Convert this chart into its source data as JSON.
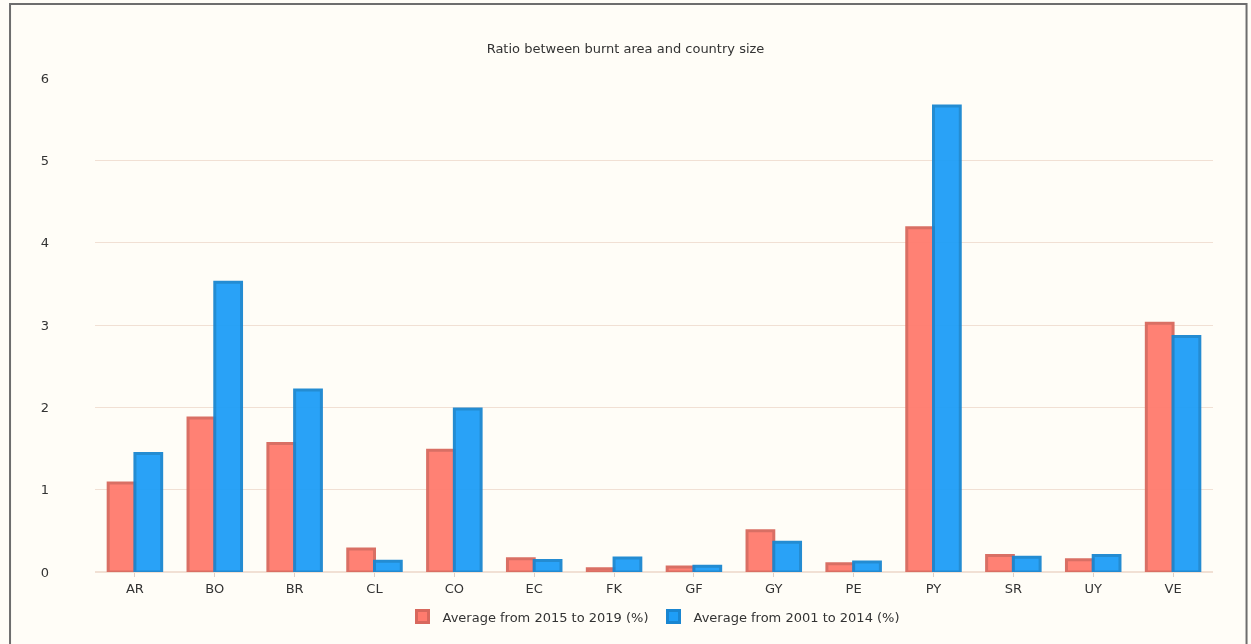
{
  "chart_data": {
    "type": "bar",
    "title": "Ratio between burnt area and country size",
    "categories": [
      "AR",
      "BO",
      "BR",
      "CL",
      "CO",
      "EC",
      "FK",
      "GF",
      "GY",
      "PE",
      "PY",
      "SR",
      "UY",
      "VE"
    ],
    "series": [
      {
        "name": "Average from 2015 to 2019 (%)",
        "color": "#ff7b6e",
        "values": [
          1.08,
          1.87,
          1.56,
          0.28,
          1.48,
          0.16,
          0.04,
          0.06,
          0.5,
          0.1,
          4.18,
          0.2,
          0.15,
          3.02
        ]
      },
      {
        "name": "Average from 2001 to 2014 (%)",
        "color": "#1e9ef7",
        "values": [
          1.44,
          3.52,
          2.21,
          0.13,
          1.98,
          0.14,
          0.17,
          0.07,
          0.36,
          0.12,
          5.66,
          0.18,
          0.2,
          2.86
        ]
      }
    ],
    "ylim": [
      0,
      6
    ],
    "yticks": [
      0,
      1,
      2,
      3,
      4,
      5,
      6
    ],
    "grid": "y",
    "legend": "bottom"
  }
}
